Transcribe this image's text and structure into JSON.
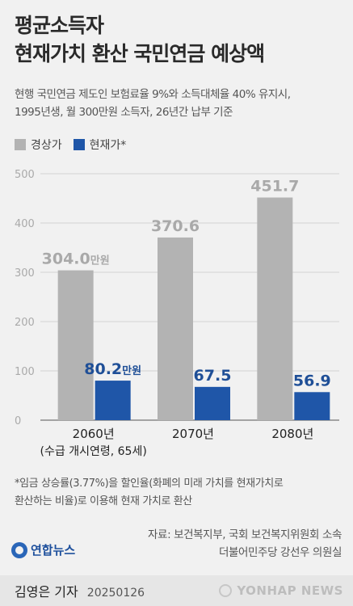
{
  "title_lines": [
    "평균소득자",
    "현재가치 환산 국민연금 예상액"
  ],
  "subtitle_lines": [
    "현행 국민연금 제도인 보험료율 9%와 소득대체율 40% 유지시,",
    "1995년생, 월 300만원 소득자, 26년간 납부 기준"
  ],
  "legend": [
    {
      "label": "경상가",
      "color": "#b3b3b3"
    },
    {
      "label": "현재가*",
      "color": "#1f56a8"
    }
  ],
  "chart_data": {
    "type": "bar",
    "categories": [
      "2060년",
      "2070년",
      "2080년"
    ],
    "category_sublabels": [
      "(수급 개시연령, 65세)",
      "",
      ""
    ],
    "series": [
      {
        "name": "경상가",
        "values": [
          304.0,
          370.6,
          451.7
        ],
        "color": "#b3b3b3",
        "label_color": "#a9a9a9",
        "labels": [
          "304.0",
          "370.6",
          "451.7"
        ],
        "unit_labels": [
          "만원",
          "",
          ""
        ]
      },
      {
        "name": "현재가*",
        "values": [
          80.2,
          67.5,
          56.9
        ],
        "color": "#1f56a8",
        "label_color": "#1f4f97",
        "labels": [
          "80.2",
          "67.5",
          "56.9"
        ],
        "unit_labels": [
          "만원",
          "",
          ""
        ]
      }
    ],
    "ylim": [
      0,
      500
    ],
    "yticks": [
      "0",
      "100",
      "200",
      "300",
      "400",
      "500"
    ],
    "grid": true
  },
  "footnote_lines": [
    "*임금 상승률(3.77%)을 할인율(화폐의 미래 가치를 현재가치로",
    "  환산하는 비율)로 이용해 현재 가치로 환산"
  ],
  "source_lines": [
    "자료: 보건복지부, 국회 보건복지위원회 소속",
    "더불어민주당 강선우 의원실"
  ],
  "agency_logo_text": "연합뉴스",
  "byline": {
    "author": "김영은 기자",
    "date": "20250126"
  },
  "watermark_text": "YONHAP NEWS"
}
